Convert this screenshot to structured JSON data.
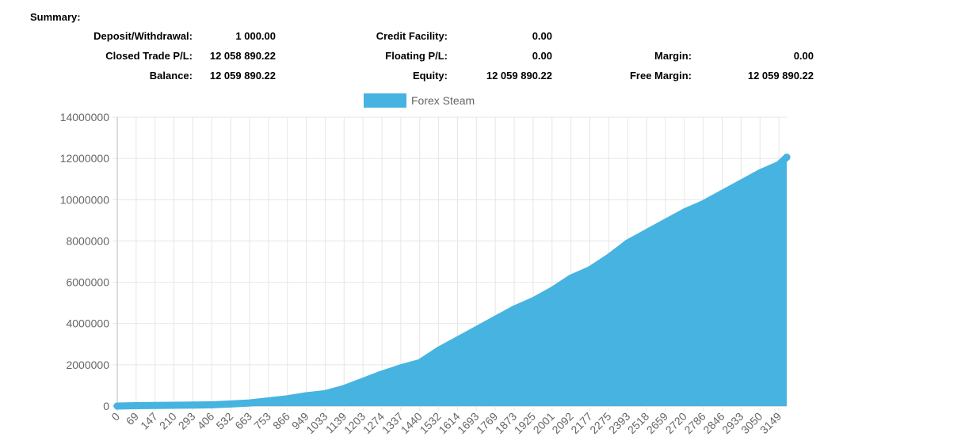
{
  "summary": {
    "title": "Summary:",
    "rows": [
      [
        {
          "label": "Deposit/Withdrawal:",
          "value": "1 000.00"
        },
        {
          "label": "Credit Facility:",
          "value": "0.00"
        },
        {
          "label": "",
          "value": ""
        }
      ],
      [
        {
          "label": "Closed Trade P/L:",
          "value": "12 058 890.22"
        },
        {
          "label": "Floating P/L:",
          "value": "0.00"
        },
        {
          "label": "Margin:",
          "value": "0.00"
        }
      ],
      [
        {
          "label": "Balance:",
          "value": "12 059 890.22"
        },
        {
          "label": "Equity:",
          "value": "12 059 890.22"
        },
        {
          "label": "Free Margin:",
          "value": "12 059 890.22"
        }
      ]
    ]
  },
  "chart_data": {
    "type": "area",
    "color": "#47b3e0",
    "legend_position": "top",
    "grid": true,
    "ylim": [
      0,
      14000000
    ],
    "yticks": [
      0,
      2000000,
      4000000,
      6000000,
      8000000,
      10000000,
      12000000,
      14000000
    ],
    "categories": [
      "0",
      "69",
      "147",
      "210",
      "293",
      "406",
      "532",
      "663",
      "753",
      "866",
      "949",
      "1033",
      "1139",
      "1203",
      "1274",
      "1337",
      "1440",
      "1532",
      "1614",
      "1693",
      "1769",
      "1873",
      "1925",
      "2001",
      "2092",
      "2177",
      "2275",
      "2393",
      "2518",
      "2659",
      "2720",
      "2786",
      "2846",
      "2933",
      "3050",
      "3149",
      ""
    ],
    "series": [
      {
        "name": "Forex Steam",
        "values": [
          1000,
          20000,
          30000,
          40000,
          50000,
          60000,
          100000,
          150000,
          250000,
          350000,
          500000,
          600000,
          850000,
          1200000,
          1550000,
          1850000,
          2100000,
          2700000,
          3200000,
          3700000,
          4200000,
          4700000,
          5100000,
          5600000,
          6200000,
          6600000,
          7200000,
          7900000,
          8400000,
          8900000,
          9400000,
          9800000,
          10300000,
          10800000,
          11300000,
          11700000,
          12059890
        ]
      }
    ]
  }
}
